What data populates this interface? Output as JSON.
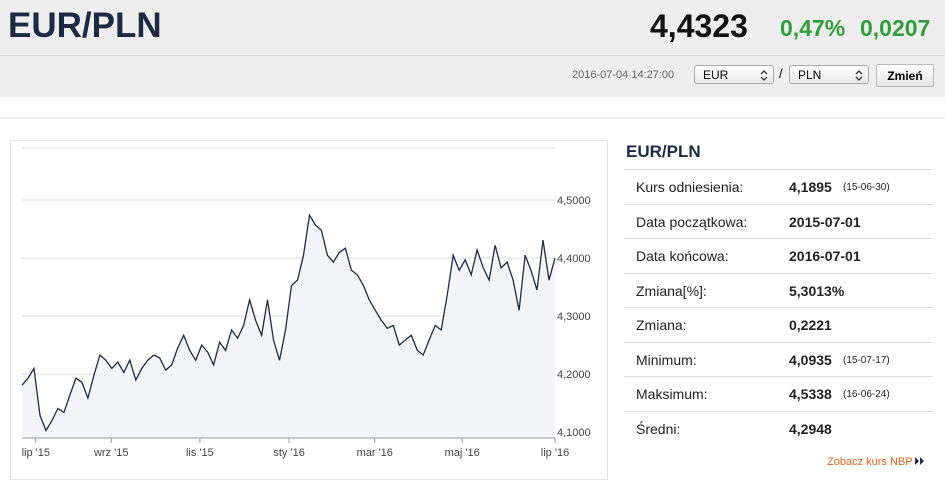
{
  "header": {
    "title": "EUR/PLN",
    "rate": "4,4323",
    "change_pct": "0,47%",
    "change": "0,0207",
    "timestamp": "2016-07-04 14:27:00",
    "from": "EUR",
    "separator": "/",
    "to": "PLN",
    "button": "Zmień"
  },
  "chart_data": {
    "type": "line",
    "color": "#1c2b45",
    "values": [
      4.181,
      4.193,
      4.21,
      4.129,
      4.103,
      4.12,
      4.141,
      4.134,
      4.164,
      4.193,
      4.186,
      4.159,
      4.198,
      4.233,
      4.224,
      4.21,
      4.221,
      4.203,
      4.224,
      4.19,
      4.21,
      4.224,
      4.233,
      4.228,
      4.207,
      4.216,
      4.245,
      4.267,
      4.241,
      4.224,
      4.25,
      4.238,
      4.216,
      4.255,
      4.241,
      4.276,
      4.262,
      4.284,
      4.328,
      4.293,
      4.267,
      4.328,
      4.259,
      4.224,
      4.276,
      4.353,
      4.362,
      4.405,
      4.474,
      4.457,
      4.448,
      4.405,
      4.393,
      4.41,
      4.417,
      4.379,
      4.371,
      4.353,
      4.328,
      4.31,
      4.293,
      4.279,
      4.284,
      4.25,
      4.259,
      4.267,
      4.241,
      4.233,
      4.259,
      4.284,
      4.276,
      4.336,
      4.405,
      4.379,
      4.397,
      4.371,
      4.414,
      4.384,
      4.362,
      4.422,
      4.383,
      4.393,
      4.362,
      4.31,
      4.405,
      4.379,
      4.345,
      4.431,
      4.362,
      4.4
    ],
    "xlim": [
      0,
      89
    ],
    "xticks": [
      {
        "value": 2.3,
        "label": "lip '15"
      },
      {
        "value": 14.9,
        "label": "wrz '15"
      },
      {
        "value": 29.7,
        "label": "lis '15"
      },
      {
        "value": 44.6,
        "label": "sty '16"
      },
      {
        "value": 58.9,
        "label": "mar '16"
      },
      {
        "value": 73.5,
        "label": "maj '16"
      },
      {
        "value": 89,
        "label": "lip '16"
      }
    ],
    "ylim": [
      4.09,
      4.6
    ],
    "yticks": [
      {
        "value": 4.1,
        "label": "4,1000"
      },
      {
        "value": 4.2,
        "label": "4,2000"
      },
      {
        "value": 4.3,
        "label": "4,3000"
      },
      {
        "value": 4.4,
        "label": "4,4000"
      },
      {
        "value": 4.5,
        "label": "4,5000"
      }
    ],
    "grid": true
  },
  "panel": {
    "title": "EUR/PLN",
    "rows": [
      {
        "label": "Kurs odniesienia:",
        "value": "4,1895",
        "date": "(15-06-30)"
      },
      {
        "label": "Data początkowa:",
        "value": "2015-07-01"
      },
      {
        "label": "Data końcowa:",
        "value": "2016-07-01"
      },
      {
        "label": "Zmiana[%]:",
        "value": "5,3013%"
      },
      {
        "label": "Zmiana:",
        "value": "0,2221"
      },
      {
        "label": "Minimum:",
        "value": "4,0935",
        "date": "(15-07-17)"
      },
      {
        "label": "Maksimum:",
        "value": "4,5338",
        "date": "(16-06-24)"
      },
      {
        "label": "Średni:",
        "value": "4,2948"
      }
    ],
    "link": "Zobacz kurs NBP"
  }
}
